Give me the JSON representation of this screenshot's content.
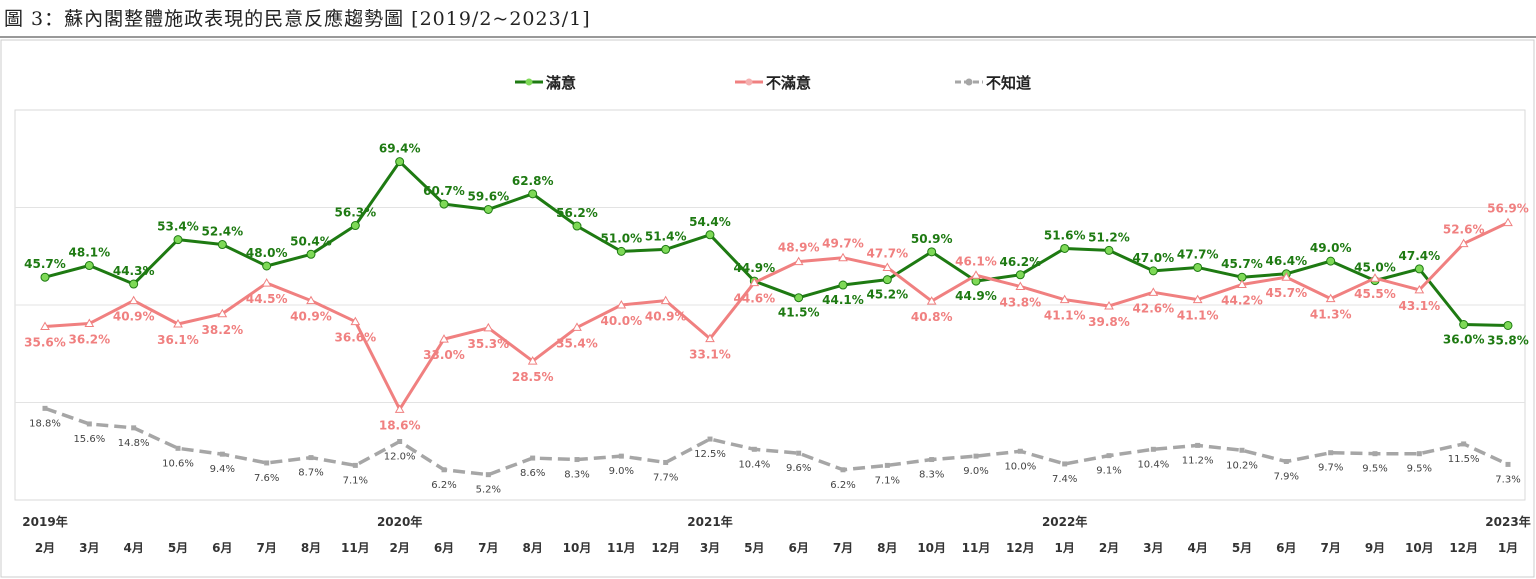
{
  "title": "圖 3：蘇內閣整體施政表現的民意反應趨勢圖 [2019/2~2023/1]",
  "chart_data": {
    "type": "line",
    "title": "圖 3：蘇內閣整體施政表現的民意反應趨勢圖 [2019/2~2023/1]",
    "xlabel": "",
    "ylabel": "",
    "ylim": [
      0,
      80
    ],
    "grid": true,
    "legend": "top-center",
    "year_labels": [
      {
        "index": 0,
        "label": "2019年"
      },
      {
        "index": 8,
        "label": "2020年"
      },
      {
        "index": 15,
        "label": "2021年"
      },
      {
        "index": 23,
        "label": "2022年"
      },
      {
        "index": 33,
        "label": "2023年"
      }
    ],
    "categories": [
      "2月",
      "3月",
      "4月",
      "5月",
      "6月",
      "7月",
      "8月",
      "11月",
      "2月",
      "6月",
      "7月",
      "8月",
      "10月",
      "11月",
      "12月",
      "3月",
      "5月",
      "6月",
      "7月",
      "8月",
      "10月",
      "11月",
      "12月",
      "1月",
      "2月",
      "3月",
      "4月",
      "5月",
      "6月",
      "7月",
      "9月",
      "10月",
      "12月",
      "1月"
    ],
    "series": [
      {
        "name": "滿意",
        "color": "#1e7a12",
        "marker": "#7ed957",
        "values": [
          45.7,
          48.1,
          44.3,
          53.4,
          52.4,
          48.0,
          50.4,
          56.3,
          69.4,
          60.7,
          59.6,
          62.8,
          56.2,
          51.0,
          51.4,
          54.4,
          44.9,
          41.5,
          44.1,
          45.2,
          50.9,
          44.9,
          46.2,
          51.6,
          51.2,
          47.0,
          47.7,
          45.7,
          46.4,
          49.0,
          45.0,
          47.4,
          36.0,
          35.8
        ]
      },
      {
        "name": "不滿意",
        "color": "#f08080",
        "marker": "#f5b0b0",
        "values": [
          35.6,
          36.2,
          40.9,
          36.1,
          38.2,
          44.5,
          40.9,
          36.6,
          18.6,
          33.0,
          35.3,
          28.5,
          35.4,
          40.0,
          40.9,
          33.1,
          44.6,
          48.9,
          49.7,
          47.7,
          40.8,
          46.1,
          43.8,
          41.1,
          39.8,
          42.6,
          41.1,
          44.2,
          45.7,
          41.3,
          45.5,
          43.1,
          52.6,
          56.9
        ]
      },
      {
        "name": "不知道",
        "color": "#a6a6a6",
        "marker": "#a6a6a6",
        "values": [
          18.8,
          15.6,
          14.8,
          10.6,
          9.4,
          7.6,
          8.7,
          7.1,
          12.0,
          6.2,
          5.2,
          8.6,
          8.3,
          9.0,
          7.7,
          12.5,
          10.4,
          9.6,
          6.2,
          7.1,
          8.3,
          9.0,
          10.0,
          7.4,
          9.1,
          10.4,
          11.2,
          10.2,
          7.9,
          9.7,
          9.5,
          9.5,
          11.5,
          7.3
        ]
      }
    ]
  }
}
